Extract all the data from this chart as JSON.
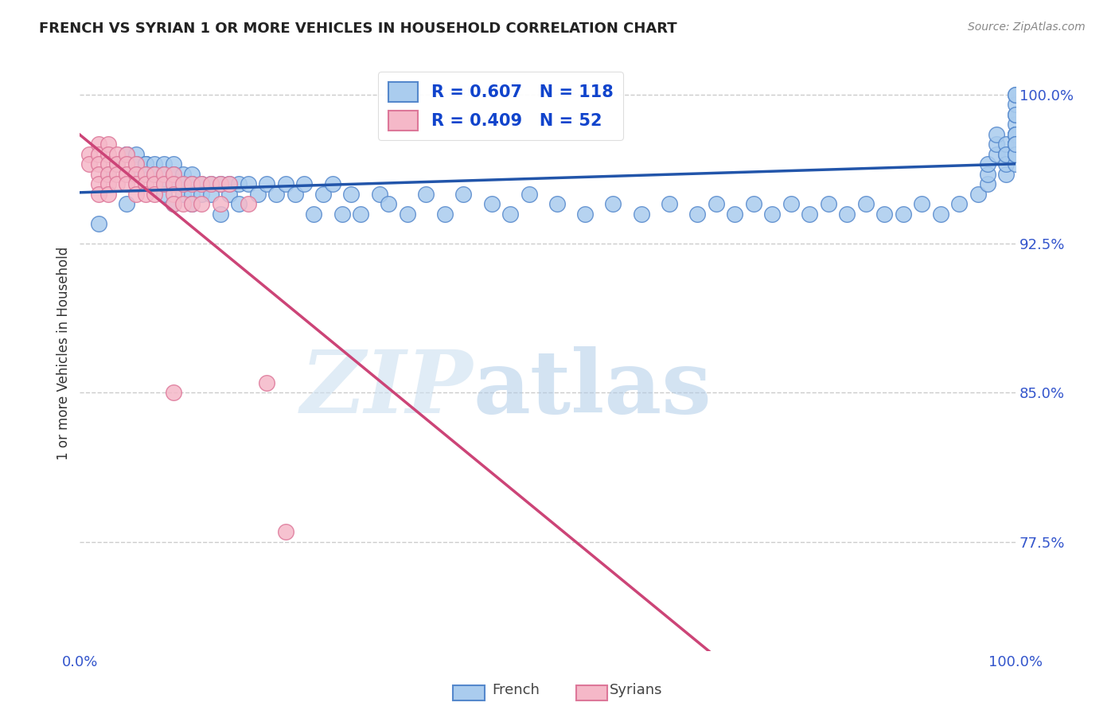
{
  "title": "FRENCH VS SYRIAN 1 OR MORE VEHICLES IN HOUSEHOLD CORRELATION CHART",
  "source": "Source: ZipAtlas.com",
  "ylabel": "1 or more Vehicles in Household",
  "xlim": [
    0.0,
    1.0
  ],
  "ylim": [
    0.72,
    1.02
  ],
  "yticks": [
    0.775,
    0.85,
    0.925,
    1.0
  ],
  "ytick_labels": [
    "77.5%",
    "85.0%",
    "92.5%",
    "100.0%"
  ],
  "xticks": [
    0.0,
    1.0
  ],
  "xtick_labels": [
    "0.0%",
    "100.0%"
  ],
  "legend_french_R": "0.607",
  "legend_french_N": "118",
  "legend_syrian_R": "0.409",
  "legend_syrian_N": "52",
  "french_color": "#aaccee",
  "french_edge": "#5588cc",
  "french_line": "#2255aa",
  "syrian_color": "#f5b8c8",
  "syrian_edge": "#dd7799",
  "syrian_line": "#cc4477",
  "background_color": "#ffffff",
  "grid_color": "#cccccc",
  "french_x": [
    0.02,
    0.03,
    0.04,
    0.04,
    0.05,
    0.05,
    0.05,
    0.06,
    0.06,
    0.06,
    0.07,
    0.07,
    0.07,
    0.07,
    0.08,
    0.08,
    0.08,
    0.08,
    0.09,
    0.09,
    0.09,
    0.09,
    0.1,
    0.1,
    0.1,
    0.1,
    0.11,
    0.11,
    0.11,
    0.12,
    0.12,
    0.12,
    0.12,
    0.13,
    0.13,
    0.14,
    0.14,
    0.15,
    0.15,
    0.16,
    0.16,
    0.17,
    0.17,
    0.18,
    0.19,
    0.2,
    0.21,
    0.22,
    0.23,
    0.24,
    0.25,
    0.26,
    0.27,
    0.28,
    0.29,
    0.3,
    0.32,
    0.33,
    0.35,
    0.37,
    0.39,
    0.41,
    0.44,
    0.46,
    0.48,
    0.51,
    0.54,
    0.57,
    0.6,
    0.63,
    0.66,
    0.68,
    0.7,
    0.72,
    0.74,
    0.76,
    0.78,
    0.8,
    0.82,
    0.84,
    0.86,
    0.88,
    0.9,
    0.92,
    0.94,
    0.96,
    0.97,
    0.97,
    0.97,
    0.98,
    0.98,
    0.98,
    0.99,
    0.99,
    0.99,
    0.99,
    0.99,
    1.0,
    1.0,
    1.0,
    1.0,
    1.0,
    1.0,
    1.0,
    1.0,
    1.0,
    1.0,
    1.0,
    1.0,
    1.0,
    1.0,
    1.0,
    1.0,
    1.0,
    1.0,
    1.0,
    1.0,
    1.0
  ],
  "french_y": [
    0.935,
    0.96,
    0.965,
    0.965,
    0.97,
    0.97,
    0.945,
    0.97,
    0.965,
    0.96,
    0.965,
    0.965,
    0.965,
    0.96,
    0.965,
    0.96,
    0.96,
    0.96,
    0.965,
    0.96,
    0.955,
    0.95,
    0.965,
    0.96,
    0.955,
    0.945,
    0.96,
    0.955,
    0.95,
    0.96,
    0.955,
    0.95,
    0.945,
    0.955,
    0.95,
    0.955,
    0.95,
    0.955,
    0.94,
    0.955,
    0.95,
    0.955,
    0.945,
    0.955,
    0.95,
    0.955,
    0.95,
    0.955,
    0.95,
    0.955,
    0.94,
    0.95,
    0.955,
    0.94,
    0.95,
    0.94,
    0.95,
    0.945,
    0.94,
    0.95,
    0.94,
    0.95,
    0.945,
    0.94,
    0.95,
    0.945,
    0.94,
    0.945,
    0.94,
    0.945,
    0.94,
    0.945,
    0.94,
    0.945,
    0.94,
    0.945,
    0.94,
    0.945,
    0.94,
    0.945,
    0.94,
    0.94,
    0.945,
    0.94,
    0.945,
    0.95,
    0.955,
    0.96,
    0.965,
    0.97,
    0.975,
    0.98,
    0.97,
    0.975,
    0.96,
    0.965,
    0.97,
    0.975,
    0.98,
    0.985,
    0.99,
    0.995,
    1.0,
    0.99,
    0.98,
    0.97,
    0.975,
    0.965,
    0.97,
    0.975,
    0.98,
    0.97,
    0.975,
    0.98,
    0.975,
    0.97,
    0.975,
    1.0
  ],
  "syrian_x": [
    0.01,
    0.01,
    0.02,
    0.02,
    0.02,
    0.02,
    0.02,
    0.02,
    0.03,
    0.03,
    0.03,
    0.03,
    0.03,
    0.03,
    0.04,
    0.04,
    0.04,
    0.04,
    0.05,
    0.05,
    0.05,
    0.05,
    0.06,
    0.06,
    0.06,
    0.06,
    0.07,
    0.07,
    0.07,
    0.08,
    0.08,
    0.08,
    0.09,
    0.09,
    0.1,
    0.1,
    0.1,
    0.1,
    0.1,
    0.11,
    0.11,
    0.12,
    0.12,
    0.13,
    0.13,
    0.14,
    0.15,
    0.15,
    0.16,
    0.18,
    0.2,
    0.22
  ],
  "syrian_y": [
    0.97,
    0.965,
    0.975,
    0.97,
    0.965,
    0.96,
    0.955,
    0.95,
    0.975,
    0.97,
    0.965,
    0.96,
    0.955,
    0.95,
    0.97,
    0.965,
    0.96,
    0.955,
    0.97,
    0.965,
    0.96,
    0.955,
    0.965,
    0.96,
    0.955,
    0.95,
    0.96,
    0.955,
    0.95,
    0.96,
    0.955,
    0.95,
    0.96,
    0.955,
    0.96,
    0.955,
    0.95,
    0.945,
    0.85,
    0.955,
    0.945,
    0.955,
    0.945,
    0.955,
    0.945,
    0.955,
    0.955,
    0.945,
    0.955,
    0.945,
    0.855,
    0.78
  ]
}
